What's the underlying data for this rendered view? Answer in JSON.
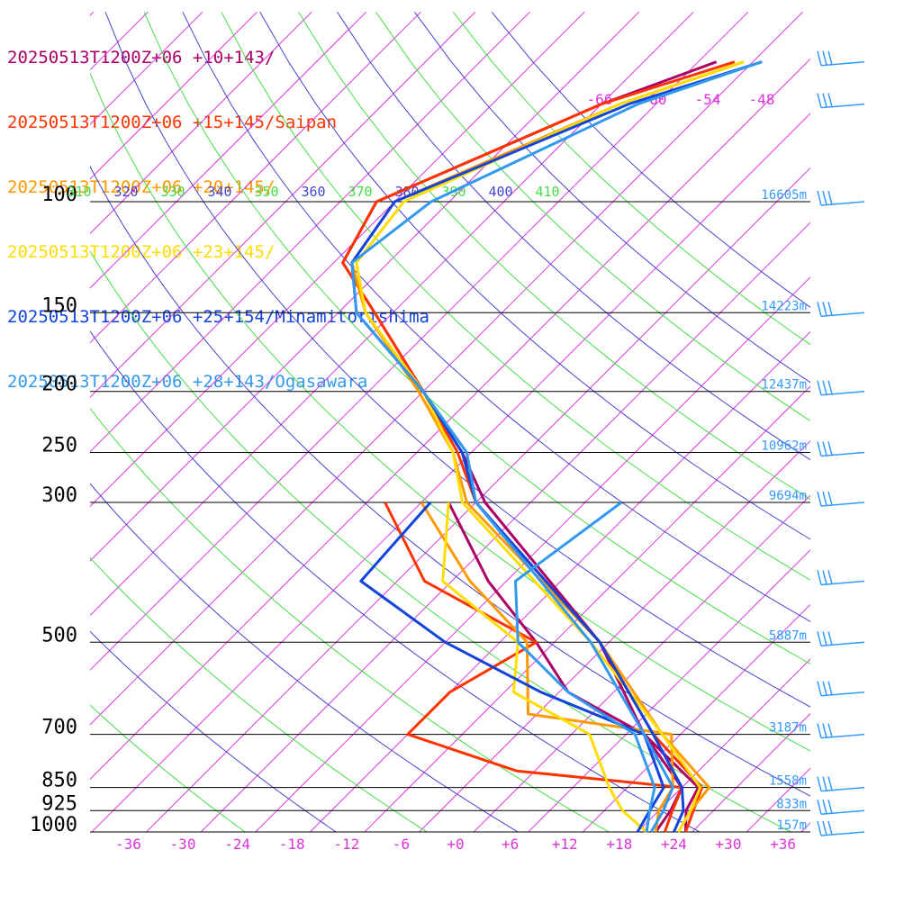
{
  "chart_data": {
    "type": "line",
    "subtype": "skew-t log-p aerological diagram",
    "title": "",
    "xlabel": "",
    "ylabel": "",
    "pressure_axis": {
      "unit": "hPa",
      "log_scale": true,
      "range": [
        1000,
        100
      ],
      "tick_labels": [
        "100",
        "150",
        "200",
        "250",
        "300",
        "500",
        "700",
        "850",
        "925",
        "1000"
      ],
      "tick_values": [
        100,
        150,
        200,
        250,
        300,
        500,
        700,
        850,
        925,
        1000
      ]
    },
    "temperature_axis": {
      "unit": "°C",
      "tick_labels": [
        "-36",
        "-30",
        "-24",
        "-18",
        "-12",
        "-6",
        "+0",
        "+6",
        "+12",
        "+18",
        "+24",
        "+30",
        "+36"
      ],
      "tick_values": [
        -36,
        -30,
        -24,
        -18,
        -12,
        -6,
        0,
        6,
        12,
        18,
        24,
        30,
        36
      ]
    },
    "height_labels": [
      {
        "p": 100,
        "label": "16605m"
      },
      {
        "p": 150,
        "label": "14223m"
      },
      {
        "p": 200,
        "label": "12437m"
      },
      {
        "p": 250,
        "label": "10962m"
      },
      {
        "p": 300,
        "label": "9694m"
      },
      {
        "p": 500,
        "label": "5887m"
      },
      {
        "p": 700,
        "label": "3187m"
      },
      {
        "p": 850,
        "label": "1558m"
      },
      {
        "p": 925,
        "label": "833m"
      },
      {
        "p": 1000,
        "label": "157m"
      }
    ],
    "isotherm_labels_top": [
      "-66",
      "-60",
      "-54",
      "-48"
    ],
    "theta_labels": [
      {
        "text": "310",
        "color": "#44dd44"
      },
      {
        "text": "320",
        "color": "#4444cc"
      },
      {
        "text": "330",
        "color": "#44dd44"
      },
      {
        "text": "340",
        "color": "#4444cc"
      },
      {
        "text": "350",
        "color": "#44dd44"
      },
      {
        "text": "360",
        "color": "#4444cc"
      },
      {
        "text": "370",
        "color": "#44dd44"
      },
      {
        "text": "380",
        "color": "#4444cc"
      },
      {
        "text": "390",
        "color": "#44dd44"
      },
      {
        "text": "400",
        "color": "#4444cc"
      },
      {
        "text": "410",
        "color": "#44dd44"
      }
    ],
    "grid": true,
    "colors": {
      "isotherm": "#dd33dd",
      "dry_adiabat_a": "#44dd44",
      "dry_adiabat_b": "#4444cc",
      "isobar": "#000000",
      "height_label": "#3399ff",
      "wind_barb": "#3399ff"
    },
    "series": [
      {
        "name": "20250513T1200Z+06 +10+143/",
        "color": "#aa0066",
        "temperature": [
          [
            1000,
            25.3
          ],
          [
            925,
            23
          ],
          [
            850,
            21.8
          ],
          [
            700,
            10
          ],
          [
            500,
            -5
          ],
          [
            300,
            -33
          ],
          [
            250,
            -41
          ],
          [
            200,
            -52
          ],
          [
            150,
            -66
          ],
          [
            125,
            -75
          ],
          [
            100,
            -78
          ],
          [
            70,
            -64
          ],
          [
            60,
            -56
          ]
        ],
        "dewpoint": [
          [
            1000,
            22
          ],
          [
            925,
            21.3
          ],
          [
            850,
            20
          ],
          [
            700,
            10
          ],
          [
            600,
            -3
          ],
          [
            500,
            -12
          ],
          [
            400,
            -24
          ],
          [
            300,
            -37
          ]
        ]
      },
      {
        "name": "20250513T1200Z+06 +15+145/Saipan",
        "color": "#ff3300",
        "temperature": [
          [
            1000,
            25.3
          ],
          [
            925,
            23.8
          ],
          [
            850,
            22.2
          ],
          [
            700,
            11
          ],
          [
            500,
            -5
          ],
          [
            300,
            -34
          ],
          [
            250,
            -41.5
          ],
          [
            200,
            -52
          ],
          [
            150,
            -66
          ],
          [
            125,
            -75
          ],
          [
            100,
            -78
          ],
          [
            70,
            -64
          ],
          [
            60,
            -54
          ]
        ],
        "dewpoint": [
          [
            1000,
            23
          ],
          [
            925,
            21.5
          ],
          [
            850,
            20
          ],
          [
            800,
            0
          ],
          [
            700,
            -16
          ],
          [
            600,
            -16
          ],
          [
            500,
            -12
          ],
          [
            400,
            -31
          ],
          [
            300,
            -44
          ]
        ]
      },
      {
        "name": "20250513T1200Z+06 +20+145/",
        "color": "#ff9900",
        "temperature": [
          [
            1000,
            24.5
          ],
          [
            925,
            23.5
          ],
          [
            850,
            23
          ],
          [
            700,
            12
          ],
          [
            500,
            -5
          ],
          [
            300,
            -35
          ],
          [
            250,
            -42
          ],
          [
            200,
            -52.5
          ],
          [
            150,
            -67
          ],
          [
            125,
            -74
          ],
          [
            100,
            -76
          ],
          [
            70,
            -62
          ],
          [
            60,
            -53
          ]
        ],
        "dewpoint": [
          [
            1000,
            22
          ],
          [
            925,
            20
          ],
          [
            850,
            19
          ],
          [
            700,
            13
          ],
          [
            650,
            -5
          ],
          [
            500,
            -13
          ],
          [
            400,
            -26
          ],
          [
            300,
            -40
          ]
        ]
      },
      {
        "name": "20250513T1200Z+06 +23+145/",
        "color": "#ffdd00",
        "temperature": [
          [
            1000,
            24.5
          ],
          [
            925,
            23.5
          ],
          [
            850,
            22
          ],
          [
            700,
            12
          ],
          [
            500,
            -6
          ],
          [
            300,
            -35.5
          ],
          [
            250,
            -42
          ],
          [
            200,
            -52
          ],
          [
            150,
            -67
          ],
          [
            125,
            -73.5
          ],
          [
            100,
            -75
          ],
          [
            70,
            -62
          ],
          [
            60,
            -53
          ]
        ],
        "dewpoint": [
          [
            1000,
            21
          ],
          [
            925,
            16
          ],
          [
            850,
            12
          ],
          [
            700,
            4
          ],
          [
            600,
            -9
          ],
          [
            500,
            -14
          ],
          [
            400,
            -29
          ],
          [
            300,
            -37
          ]
        ]
      },
      {
        "name": "20250513T1200Z+06 +25+154/Minamitorishima",
        "color": "#1144dd",
        "temperature": [
          [
            1000,
            24
          ],
          [
            925,
            22.7
          ],
          [
            850,
            20
          ],
          [
            700,
            11
          ],
          [
            500,
            -5
          ],
          [
            300,
            -34
          ],
          [
            250,
            -41
          ],
          [
            200,
            -52
          ],
          [
            150,
            -68
          ],
          [
            125,
            -74
          ],
          [
            100,
            -76
          ],
          [
            70,
            -61
          ],
          [
            60,
            -51
          ]
        ],
        "dewpoint": [
          [
            1000,
            20
          ],
          [
            925,
            19
          ],
          [
            850,
            18
          ],
          [
            700,
            10
          ],
          [
            600,
            -6
          ],
          [
            500,
            -22
          ],
          [
            400,
            -38
          ],
          [
            300,
            -39
          ]
        ]
      },
      {
        "name": "20250513T1200Z+06 +28+143/Ogasawara",
        "color": "#3399ee",
        "temperature": [
          [
            1000,
            21.5
          ],
          [
            925,
            20.5
          ],
          [
            850,
            19
          ],
          [
            700,
            10
          ],
          [
            500,
            -6
          ],
          [
            300,
            -34
          ],
          [
            250,
            -40.5
          ],
          [
            200,
            -52
          ],
          [
            150,
            -68
          ],
          [
            125,
            -74
          ],
          [
            100,
            -72
          ],
          [
            70,
            -60
          ],
          [
            60,
            -51
          ]
        ],
        "dewpoint": [
          [
            1000,
            21
          ],
          [
            925,
            19
          ],
          [
            850,
            17
          ],
          [
            700,
            9
          ],
          [
            600,
            -3
          ],
          [
            500,
            -14
          ],
          [
            400,
            -21
          ],
          [
            300,
            -18
          ]
        ]
      }
    ],
    "wind_barb_levels": [
      60,
      70,
      100,
      150,
      200,
      250,
      300,
      400,
      500,
      600,
      700,
      850,
      925,
      1000
    ]
  }
}
